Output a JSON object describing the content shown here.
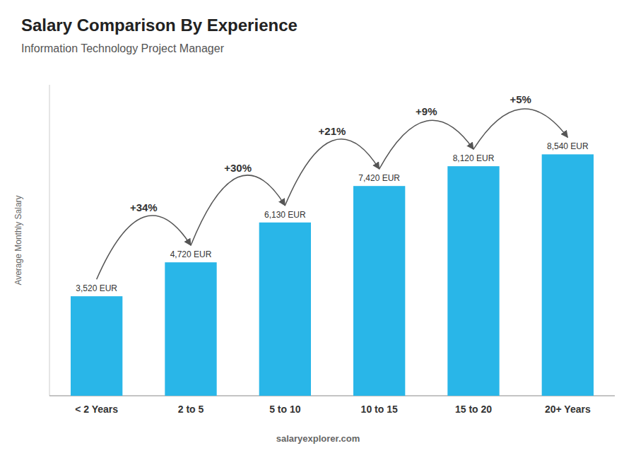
{
  "chart_data": {
    "type": "bar",
    "title": "Salary Comparison By Experience",
    "subtitle": "Information Technology Project Manager",
    "y_label": "Average Monthly Salary",
    "categories": [
      "< 2 Years",
      "2 to 5",
      "5 to 10",
      "10 to 15",
      "15 to 20",
      "20+ Years"
    ],
    "values": [
      3520,
      4720,
      6130,
      7420,
      8120,
      8540
    ],
    "value_labels": [
      "3,520 EUR",
      "4,720 EUR",
      "6,130 EUR",
      "7,420 EUR",
      "8,120 EUR",
      "8,540 EUR"
    ],
    "data_labels": true,
    "annotations": [
      "+34%",
      "+30%",
      "+21%",
      "+9%",
      "+5%"
    ],
    "color": "#29b6e8",
    "ylim": [
      0,
      11000
    ],
    "tick_labels": "x",
    "footer": "salaryexplorer.com"
  }
}
